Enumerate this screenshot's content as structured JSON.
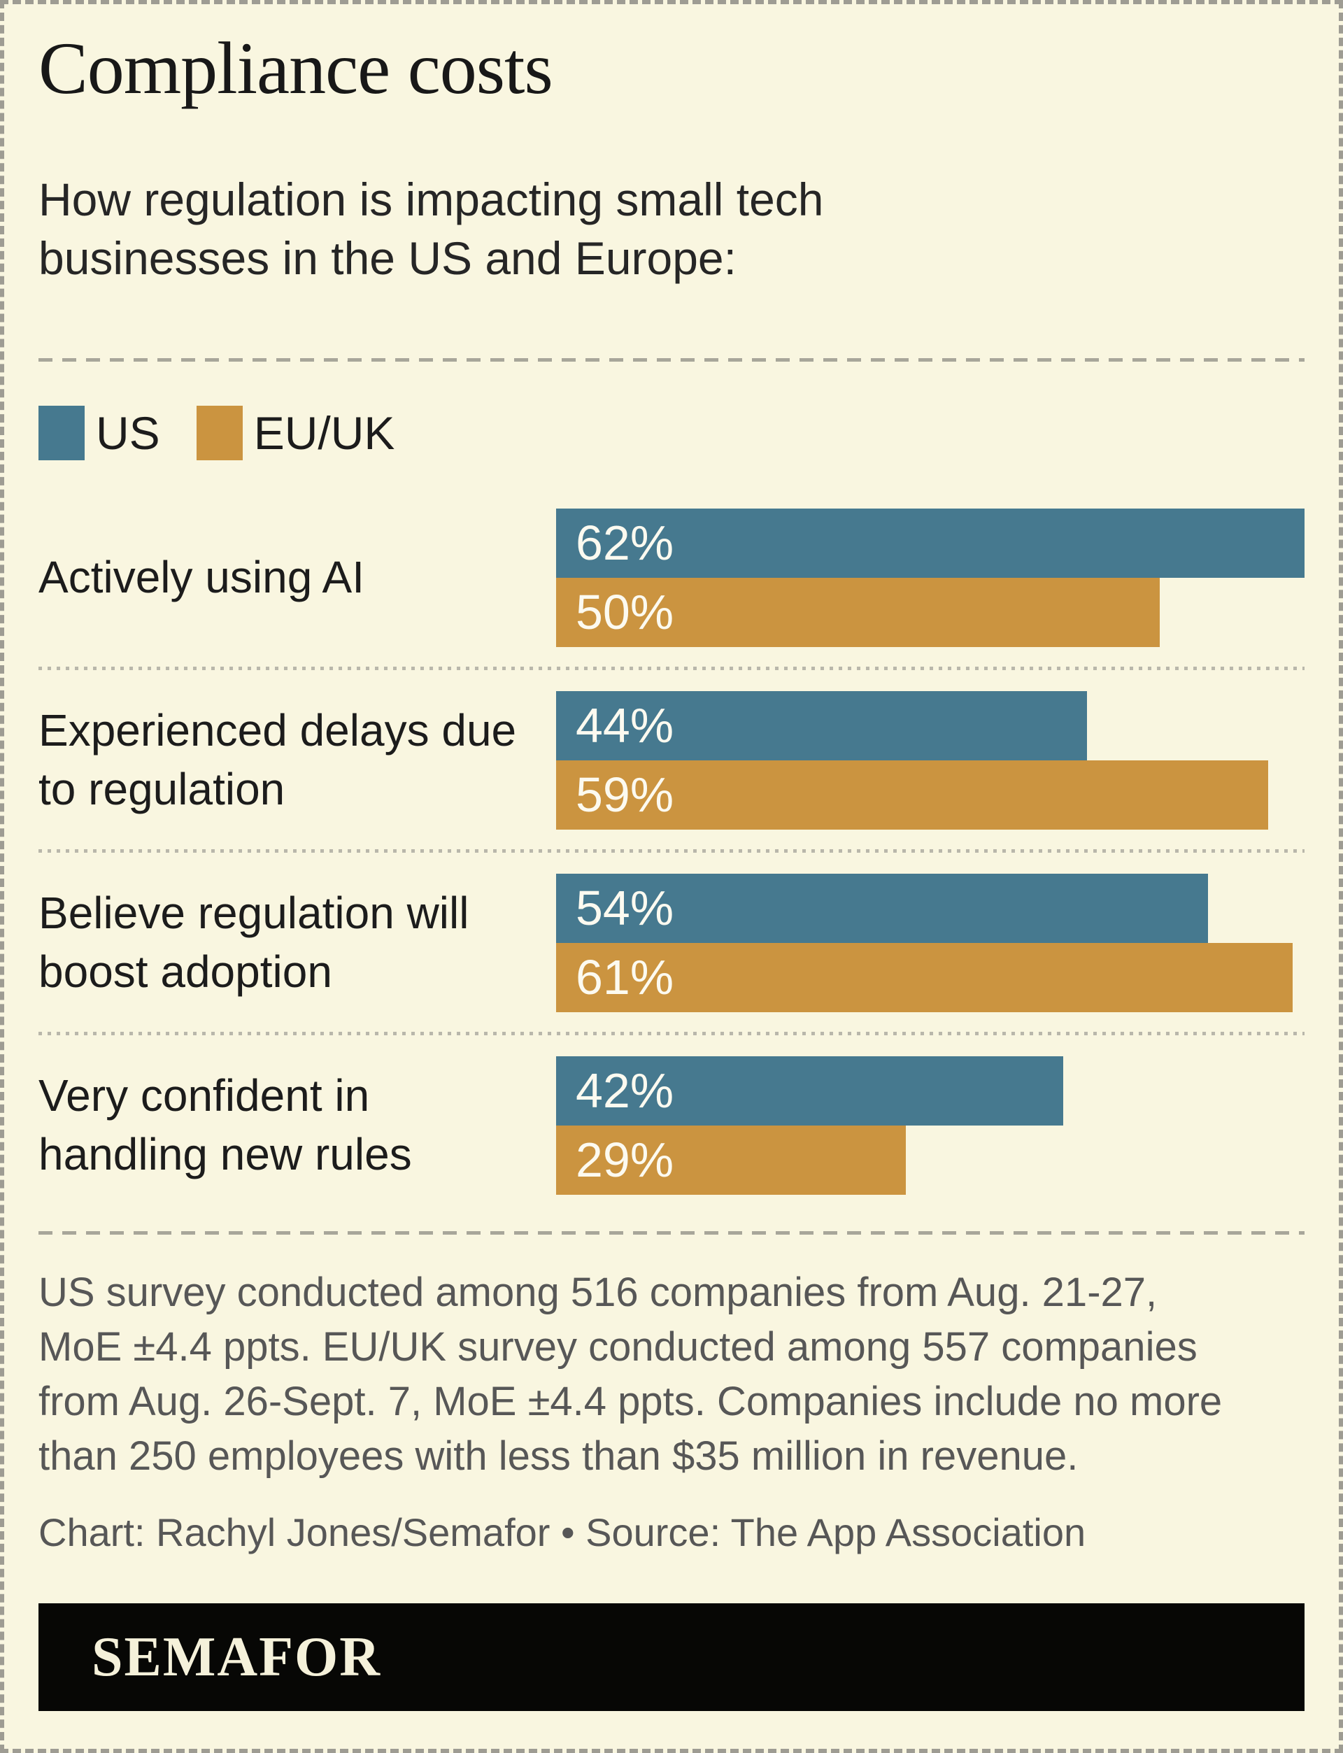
{
  "title": "Compliance costs",
  "subtitle": "How regulation is impacting small tech businesses in the US and Europe:",
  "colors": {
    "background": "#f9f6e0",
    "us": "#46798f",
    "eu_uk": "#cb9440",
    "separator": "#a8a69a",
    "footnote_text": "#575757",
    "logo_bar": "#070705",
    "logo_text": "#f5f1da"
  },
  "legend": [
    {
      "label": "US",
      "color": "#46798f"
    },
    {
      "label": "EU/UK",
      "color": "#cb9440"
    }
  ],
  "chart_data": {
    "type": "bar",
    "orientation": "horizontal",
    "title": "Compliance costs",
    "subtitle": "How regulation is impacting small tech businesses in the US and Europe:",
    "categories": [
      "Actively using AI",
      "Experienced delays due to regulation",
      "Believe regulation will boost adoption",
      "Very confident in handling new rules"
    ],
    "series": [
      {
        "name": "US",
        "color": "#46798f",
        "values": [
          62,
          44,
          54,
          42
        ]
      },
      {
        "name": "EU/UK",
        "color": "#cb9440",
        "values": [
          50,
          59,
          61,
          29
        ]
      }
    ],
    "value_suffix": "%",
    "data_labels": true,
    "xlim": [
      0,
      62
    ],
    "grid": false,
    "legend_position": "top-left"
  },
  "footnote": "US survey conducted among 516 companies from Aug. 21-27, MoE ±4.4 ppts. EU/UK survey conducted among 557 companies from Aug. 26-Sept. 7, MoE ±4.4 ppts. Companies include no more than 250 employees with less than $35 million in revenue.",
  "credit": "Chart: Rachyl Jones/Semafor • Source: The App Association",
  "logo": "SEMAFOR"
}
